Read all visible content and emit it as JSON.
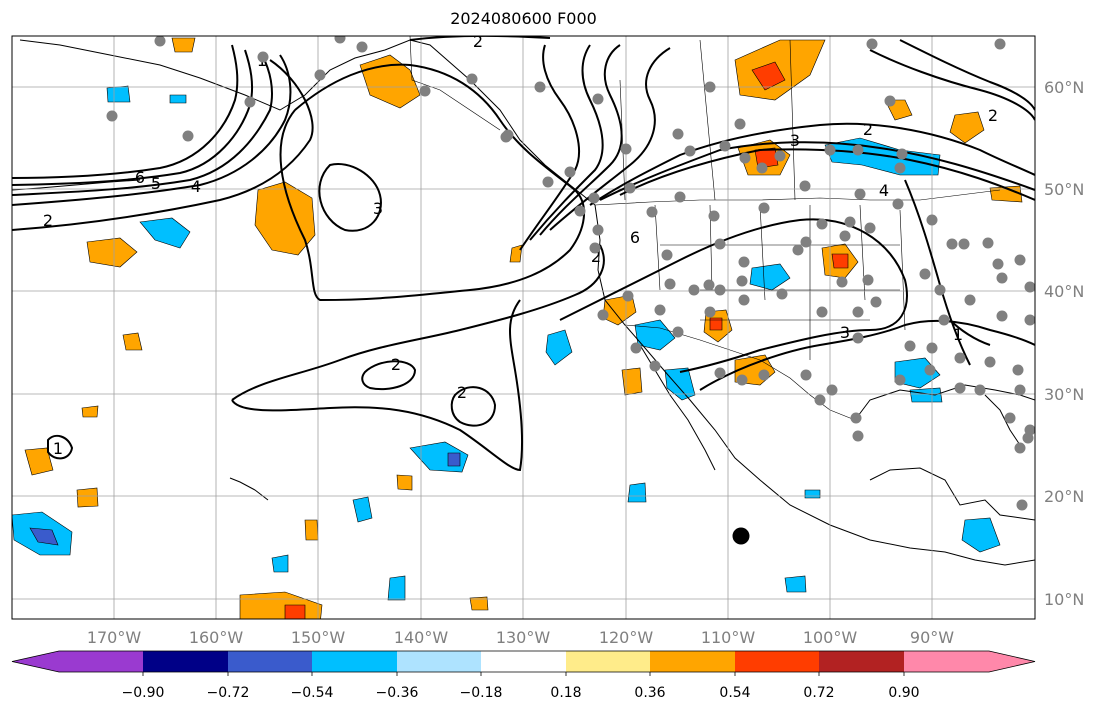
{
  "title": "2024080600 F000",
  "map": {
    "lon_range": [
      -180,
      -80
    ],
    "lat_range": [
      8,
      65
    ],
    "longitude_labels": [
      "170°W",
      "160°W",
      "150°W",
      "140°W",
      "130°W",
      "120°W",
      "110°W",
      "100°W",
      "90°W"
    ],
    "latitude_labels": [
      "60°N",
      "50°N",
      "40°N",
      "30°N",
      "20°N",
      "10°N"
    ],
    "grid": true,
    "contour_labels": [
      "1",
      "6",
      "5",
      "4",
      "3",
      "2",
      "2",
      "4",
      "3",
      "2",
      "6",
      "2",
      "3",
      "1",
      "2",
      "2",
      "2",
      "1"
    ]
  },
  "colorbar": {
    "tick_labels": [
      "−0.90",
      "−0.72",
      "−0.54",
      "−0.36",
      "−0.18",
      "0.18",
      "0.36",
      "0.54",
      "0.72",
      "0.90"
    ],
    "colors": [
      "#9a3ad0",
      "#000087",
      "#3a5bcc",
      "#00bfff",
      "#aee3ff",
      "#ffffff",
      "#ffec8a",
      "#ffa500",
      "#ff3d00",
      "#b22222",
      "#ff88aa"
    ]
  },
  "colors": {
    "positive_fill": "#ffa500",
    "strong_positive_fill": "#ff3d00",
    "negative_fill": "#00bfff",
    "strong_negative_fill": "#3a5bcc",
    "station_marker": "#808080"
  }
}
